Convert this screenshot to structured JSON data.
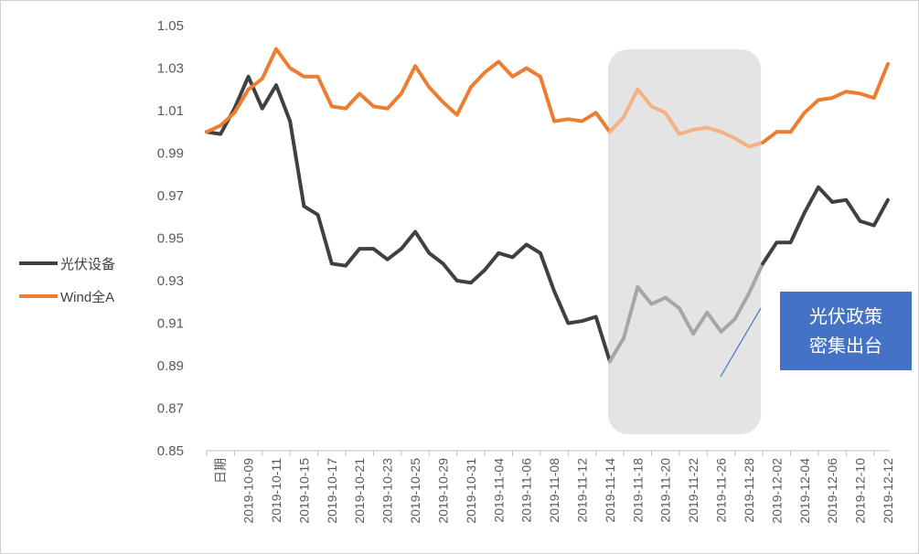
{
  "chart_data": {
    "type": "line",
    "title": "",
    "xlabel": "",
    "ylabel": "",
    "ylim": [
      0.85,
      1.05
    ],
    "yticks": [
      "1.05",
      "1.03",
      "1.01",
      "0.99",
      "0.97",
      "0.95",
      "0.93",
      "0.91",
      "0.89",
      "0.87",
      "0.85"
    ],
    "ytick_values": [
      1.05,
      1.03,
      1.01,
      0.99,
      0.97,
      0.95,
      0.93,
      0.91,
      0.89,
      0.87,
      0.85
    ],
    "x_tick_labels": [
      "日期",
      "2019-10-09",
      "2019-10-11",
      "2019-10-15",
      "2019-10-17",
      "2019-10-21",
      "2019-10-23",
      "2019-10-25",
      "2019-10-29",
      "2019-10-31",
      "2019-11-04",
      "2019-11-06",
      "2019-11-08",
      "2019-11-12",
      "2019-11-14",
      "2019-11-18",
      "2019-11-20",
      "2019-11-22",
      "2019-11-26",
      "2019-11-28",
      "2019-12-02",
      "2019-12-04",
      "2019-12-06",
      "2019-12-10",
      "2019-12-12"
    ],
    "legend_position": "left",
    "grid": false,
    "highlight": {
      "from": "2019-11-15",
      "to": "2019-12-02",
      "annotation": [
        "光伏政策",
        "密集出台"
      ]
    },
    "series": [
      {
        "name": "光伏设备",
        "color": "#404040",
        "highlight_color": "#a6a6a6",
        "points": [
          [
            "日期",
            1.0
          ],
          [
            "2019-10-08",
            0.999
          ],
          [
            "2019-10-09",
            1.011
          ],
          [
            "2019-10-10",
            1.026
          ],
          [
            "2019-10-11",
            1.011
          ],
          [
            "2019-10-14",
            1.022
          ],
          [
            "2019-10-15",
            1.005
          ],
          [
            "2019-10-16",
            0.965
          ],
          [
            "2019-10-17",
            0.961
          ],
          [
            "2019-10-18",
            0.938
          ],
          [
            "2019-10-21",
            0.937
          ],
          [
            "2019-10-22",
            0.945
          ],
          [
            "2019-10-23",
            0.945
          ],
          [
            "2019-10-24",
            0.94
          ],
          [
            "2019-10-25",
            0.945
          ],
          [
            "2019-10-28",
            0.953
          ],
          [
            "2019-10-29",
            0.943
          ],
          [
            "2019-10-30",
            0.938
          ],
          [
            "2019-10-31",
            0.93
          ],
          [
            "2019-11-01",
            0.929
          ],
          [
            "2019-11-04",
            0.935
          ],
          [
            "2019-11-05",
            0.943
          ],
          [
            "2019-11-06",
            0.941
          ],
          [
            "2019-11-07",
            0.947
          ],
          [
            "2019-11-08",
            0.943
          ],
          [
            "2019-11-11",
            0.925
          ],
          [
            "2019-11-12",
            0.91
          ],
          [
            "2019-11-13",
            0.911
          ],
          [
            "2019-11-14",
            0.913
          ],
          [
            "2019-11-15",
            0.892
          ],
          [
            "2019-11-18",
            0.903
          ],
          [
            "2019-11-19",
            0.927
          ],
          [
            "2019-11-20",
            0.919
          ],
          [
            "2019-11-21",
            0.922
          ],
          [
            "2019-11-22",
            0.917
          ],
          [
            "2019-11-25",
            0.905
          ],
          [
            "2019-11-26",
            0.915
          ],
          [
            "2019-11-27",
            0.906
          ],
          [
            "2019-11-28",
            0.912
          ],
          [
            "2019-11-29",
            0.924
          ],
          [
            "2019-12-02",
            0.938
          ],
          [
            "2019-12-03",
            0.948
          ],
          [
            "2019-12-04",
            0.948
          ],
          [
            "2019-12-05",
            0.962
          ],
          [
            "2019-12-06",
            0.974
          ],
          [
            "2019-12-09",
            0.967
          ],
          [
            "2019-12-10",
            0.968
          ],
          [
            "2019-12-11",
            0.958
          ],
          [
            "2019-12-12",
            0.956
          ],
          [
            "2019-12-13",
            0.968
          ]
        ]
      },
      {
        "name": "Wind全A",
        "color": "#ed7d31",
        "highlight_color": "#f4b183",
        "points": [
          [
            "日期",
            1.0
          ],
          [
            "2019-10-08",
            1.003
          ],
          [
            "2019-10-09",
            1.009
          ],
          [
            "2019-10-10",
            1.02
          ],
          [
            "2019-10-11",
            1.025
          ],
          [
            "2019-10-14",
            1.039
          ],
          [
            "2019-10-15",
            1.03
          ],
          [
            "2019-10-16",
            1.026
          ],
          [
            "2019-10-17",
            1.026
          ],
          [
            "2019-10-18",
            1.012
          ],
          [
            "2019-10-21",
            1.011
          ],
          [
            "2019-10-22",
            1.018
          ],
          [
            "2019-10-23",
            1.012
          ],
          [
            "2019-10-24",
            1.011
          ],
          [
            "2019-10-25",
            1.018
          ],
          [
            "2019-10-28",
            1.031
          ],
          [
            "2019-10-29",
            1.021
          ],
          [
            "2019-10-30",
            1.014
          ],
          [
            "2019-10-31",
            1.008
          ],
          [
            "2019-11-01",
            1.021
          ],
          [
            "2019-11-04",
            1.028
          ],
          [
            "2019-11-05",
            1.033
          ],
          [
            "2019-11-06",
            1.026
          ],
          [
            "2019-11-07",
            1.03
          ],
          [
            "2019-11-08",
            1.026
          ],
          [
            "2019-11-11",
            1.005
          ],
          [
            "2019-11-12",
            1.006
          ],
          [
            "2019-11-13",
            1.005
          ],
          [
            "2019-11-14",
            1.009
          ],
          [
            "2019-11-15",
            1.0
          ],
          [
            "2019-11-18",
            1.007
          ],
          [
            "2019-11-19",
            1.02
          ],
          [
            "2019-11-20",
            1.012
          ],
          [
            "2019-11-21",
            1.009
          ],
          [
            "2019-11-22",
            0.999
          ],
          [
            "2019-11-25",
            1.001
          ],
          [
            "2019-11-26",
            1.002
          ],
          [
            "2019-11-27",
            1.0
          ],
          [
            "2019-11-28",
            0.997
          ],
          [
            "2019-11-29",
            0.993
          ],
          [
            "2019-12-02",
            0.995
          ],
          [
            "2019-12-03",
            1.0
          ],
          [
            "2019-12-04",
            1.0
          ],
          [
            "2019-12-05",
            1.009
          ],
          [
            "2019-12-06",
            1.015
          ],
          [
            "2019-12-09",
            1.016
          ],
          [
            "2019-12-10",
            1.019
          ],
          [
            "2019-12-11",
            1.018
          ],
          [
            "2019-12-12",
            1.016
          ],
          [
            "2019-12-13",
            1.032
          ]
        ]
      }
    ]
  }
}
